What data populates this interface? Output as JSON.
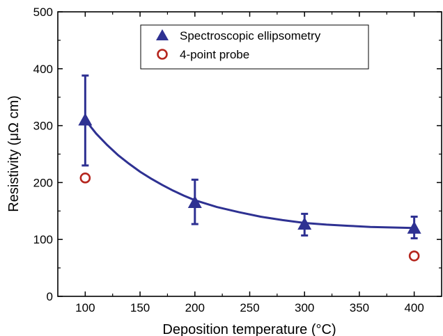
{
  "chart_data": {
    "type": "scatter",
    "xlabel": "Deposition  temperature (°C)",
    "ylabel": "Resistivity (μΩ cm)",
    "xlim": [
      75,
      425
    ],
    "ylim": [
      0,
      500
    ],
    "x_ticks": [
      100,
      150,
      200,
      250,
      300,
      350,
      400
    ],
    "y_ticks": [
      0,
      100,
      200,
      300,
      400,
      500
    ],
    "grid": false,
    "legend_position": "top-center",
    "series": [
      {
        "name": "Spectroscopic ellipsometry",
        "marker": "filled-triangle",
        "color": "#2e3192",
        "points": [
          {
            "x": 100,
            "y": 310,
            "err_low": 230,
            "err_high": 388
          },
          {
            "x": 200,
            "y": 165,
            "err_low": 127,
            "err_high": 205
          },
          {
            "x": 300,
            "y": 127,
            "err_low": 107,
            "err_high": 145
          },
          {
            "x": 400,
            "y": 120,
            "err_low": 102,
            "err_high": 140
          }
        ]
      },
      {
        "name": "4-point probe",
        "marker": "open-circle",
        "color": "#b5261e",
        "points": [
          {
            "x": 100,
            "y": 208
          },
          {
            "x": 400,
            "y": 71
          }
        ]
      }
    ],
    "fit_curve": {
      "color": "#2e3192",
      "points": [
        [
          100,
          310
        ],
        [
          110,
          286
        ],
        [
          120,
          266
        ],
        [
          130,
          248
        ],
        [
          140,
          233
        ],
        [
          150,
          219
        ],
        [
          160,
          207
        ],
        [
          170,
          196
        ],
        [
          180,
          186
        ],
        [
          190,
          177
        ],
        [
          200,
          169
        ],
        [
          220,
          157
        ],
        [
          240,
          148
        ],
        [
          260,
          140
        ],
        [
          280,
          134
        ],
        [
          300,
          129
        ],
        [
          320,
          126
        ],
        [
          340,
          124
        ],
        [
          360,
          122
        ],
        [
          380,
          121
        ],
        [
          400,
          120
        ]
      ]
    }
  }
}
